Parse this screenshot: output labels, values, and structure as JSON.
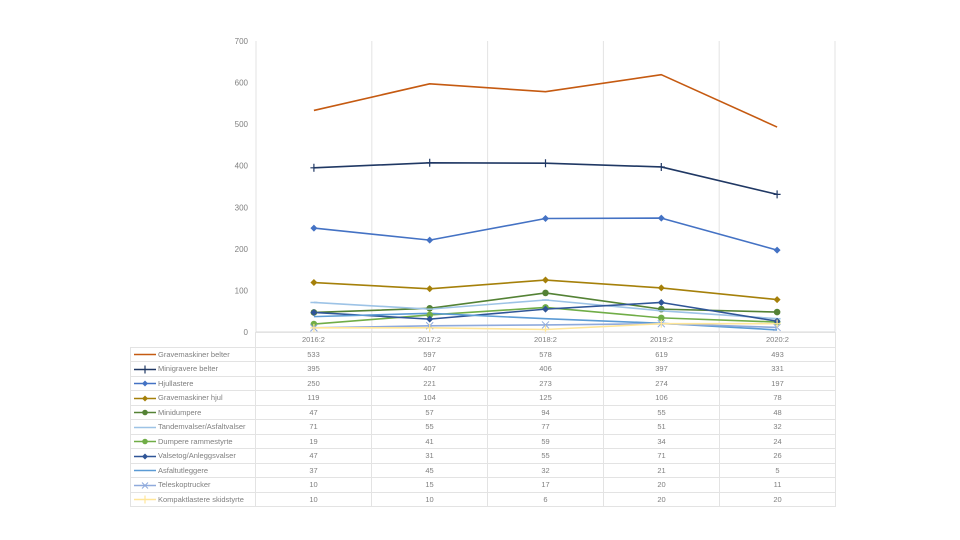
{
  "chart_data": {
    "type": "line",
    "title": "",
    "xlabel": "",
    "ylabel": "",
    "categories": [
      "2016:2",
      "2017:2",
      "2018:2",
      "2019:2",
      "2020:2"
    ],
    "y_ticks": [
      "0",
      "100",
      "200",
      "300",
      "400",
      "500",
      "600",
      "700"
    ],
    "ylim": [
      0,
      700
    ],
    "grid": "vertical",
    "legend": "data-table",
    "series": [
      {
        "name": "Gravemaskiner belter",
        "color": "#c55a11",
        "marker": "none",
        "values": [
          533,
          597,
          578,
          619,
          493
        ]
      },
      {
        "name": "Minigravere belter",
        "color": "#203864",
        "marker": "plus",
        "values": [
          395,
          407,
          406,
          397,
          331
        ]
      },
      {
        "name": "Hjullastere",
        "color": "#4472c4",
        "marker": "diamond",
        "values": [
          250,
          221,
          273,
          274,
          197
        ]
      },
      {
        "name": "Gravemaskiner hjul",
        "color": "#a5800a",
        "marker": "diamond",
        "values": [
          119,
          104,
          125,
          106,
          78
        ]
      },
      {
        "name": "Minidumpere",
        "color": "#548235",
        "marker": "circle",
        "values": [
          47,
          57,
          94,
          55,
          48
        ]
      },
      {
        "name": "Tandemvalser/Asfaltvalser",
        "color": "#9dc3e6",
        "marker": "dash",
        "values": [
          71,
          55,
          77,
          51,
          32
        ]
      },
      {
        "name": "Dumpere rammestyrte",
        "color": "#70ad47",
        "marker": "circle",
        "values": [
          19,
          41,
          59,
          34,
          24
        ]
      },
      {
        "name": "Valsetog/Anleggsvalser",
        "color": "#2f5597",
        "marker": "diamond",
        "values": [
          47,
          31,
          55,
          71,
          26
        ]
      },
      {
        "name": "Asfaltutleggere",
        "color": "#5b9bd5",
        "marker": "none",
        "values": [
          37,
          45,
          32,
          21,
          5
        ]
      },
      {
        "name": "Teleskoptrucker",
        "color": "#8faadc",
        "marker": "x",
        "values": [
          10,
          15,
          17,
          20,
          11
        ]
      },
      {
        "name": "Kompaktlastere skidstyrte",
        "color": "#ffe699",
        "marker": "plus",
        "values": [
          10,
          10,
          6,
          20,
          20
        ]
      }
    ]
  }
}
